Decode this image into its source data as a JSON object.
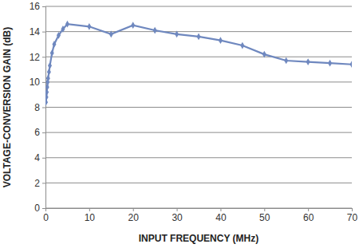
{
  "chart_data": {
    "type": "line",
    "x_label": "INPUT FREQUENCY (MHz)",
    "y_label": "VOLTAGE-CONVERSION GAIN (dB)",
    "x": [
      0.1,
      0.2,
      0.3,
      0.4,
      0.5,
      0.6,
      0.8,
      1,
      1.5,
      2,
      3,
      4,
      5,
      10,
      15,
      20,
      25,
      30,
      35,
      40,
      45,
      50,
      55,
      60,
      65,
      70
    ],
    "values": [
      8.4,
      8.8,
      9.2,
      9.6,
      10.0,
      10.3,
      10.8,
      11.3,
      12.3,
      13.0,
      13.7,
      14.2,
      14.6,
      14.4,
      13.8,
      14.5,
      14.1,
      13.8,
      13.6,
      13.3,
      12.9,
      12.2,
      11.7,
      11.6,
      11.5,
      11.4
    ],
    "color": "#6f88bf",
    "marker": "diamond",
    "xlim": [
      0,
      70
    ],
    "xticks": [
      0,
      10,
      20,
      30,
      40,
      50,
      60,
      70
    ],
    "ylim": [
      0,
      16
    ],
    "yticks": [
      0,
      2,
      4,
      6,
      8,
      10,
      12,
      14,
      16
    ],
    "grid": true
  }
}
